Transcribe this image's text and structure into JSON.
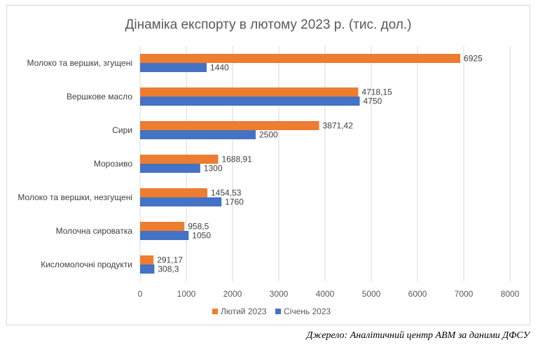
{
  "chart_data": {
    "type": "bar",
    "orientation": "horizontal",
    "title": "Дінаміка експорту в лютому 2023 р. (тис. дол.)",
    "categories": [
      "Молоко та вершки, згущені",
      "Вершкове масло",
      "Сири",
      "Морозиво",
      "Молоко та вершки, незгущені",
      "Молочна сироватка",
      "Кисломолочні продукти"
    ],
    "series": [
      {
        "name": "Лютий 2023",
        "color": "#ed7d31",
        "values": [
          6925,
          4718.15,
          3871.42,
          1688.91,
          1454.53,
          958.5,
          291.17
        ],
        "labels": [
          "6925",
          "4718,15",
          "3871,42",
          "1688,91",
          "1454,53",
          "958,5",
          "291,17"
        ]
      },
      {
        "name": "Січень 2023",
        "color": "#4472c4",
        "values": [
          1440,
          4750,
          2500,
          1300,
          1760,
          1050,
          308.3
        ],
        "labels": [
          "1440",
          "4750",
          "2500",
          "1300",
          "1760",
          "1050",
          "308,3"
        ]
      }
    ],
    "xlim": [
      0,
      8000
    ],
    "xticks": [
      0,
      1000,
      2000,
      3000,
      4000,
      5000,
      6000,
      7000,
      8000
    ],
    "grid": true,
    "legend_position": "bottom"
  },
  "source": "Джерело: Аналітичний центр АВМ за даними ДФСУ"
}
